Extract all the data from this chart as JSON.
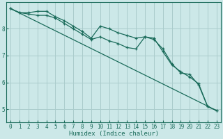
{
  "xlabel": "Humidex (Indice chaleur)",
  "bg_color": "#cce8e8",
  "grid_color": "#aacccc",
  "line_color": "#1a6b5a",
  "xlim": [
    -0.5,
    23.5
  ],
  "ylim": [
    4.5,
    9.0
  ],
  "yticks": [
    5,
    6,
    7,
    8
  ],
  "xticks": [
    0,
    1,
    2,
    3,
    4,
    5,
    6,
    7,
    8,
    9,
    10,
    11,
    12,
    13,
    14,
    15,
    16,
    17,
    18,
    19,
    20,
    21,
    22,
    23
  ],
  "series1_x": [
    0,
    1,
    2,
    3,
    4,
    5,
    6,
    7,
    8,
    9,
    10,
    11,
    12,
    13,
    14,
    15,
    16,
    17,
    18,
    19,
    20,
    21,
    22,
    23
  ],
  "series1_y": [
    8.75,
    8.6,
    8.6,
    8.65,
    8.65,
    8.45,
    8.3,
    8.1,
    7.9,
    7.65,
    8.1,
    8.0,
    7.85,
    7.75,
    7.65,
    7.7,
    7.65,
    7.15,
    6.65,
    6.4,
    6.2,
    5.95,
    5.1,
    4.95
  ],
  "series2_x": [
    0,
    1,
    2,
    3,
    4,
    5,
    6,
    7,
    8,
    9,
    10,
    11,
    12,
    13,
    14,
    15,
    16,
    17,
    18,
    19,
    20,
    21,
    22,
    23
  ],
  "series2_y": [
    8.75,
    8.6,
    8.55,
    8.5,
    8.5,
    8.4,
    8.2,
    8.0,
    7.8,
    7.6,
    7.7,
    7.55,
    7.45,
    7.3,
    7.25,
    7.7,
    7.6,
    7.25,
    6.7,
    6.35,
    6.3,
    5.9,
    5.1,
    4.95
  ],
  "trend_x": [
    0,
    23
  ],
  "trend_y": [
    8.75,
    4.95
  ],
  "line_width": 0.9,
  "marker_size": 3.5,
  "xlabel_fontsize": 6.5,
  "tick_fontsize": 5.5
}
